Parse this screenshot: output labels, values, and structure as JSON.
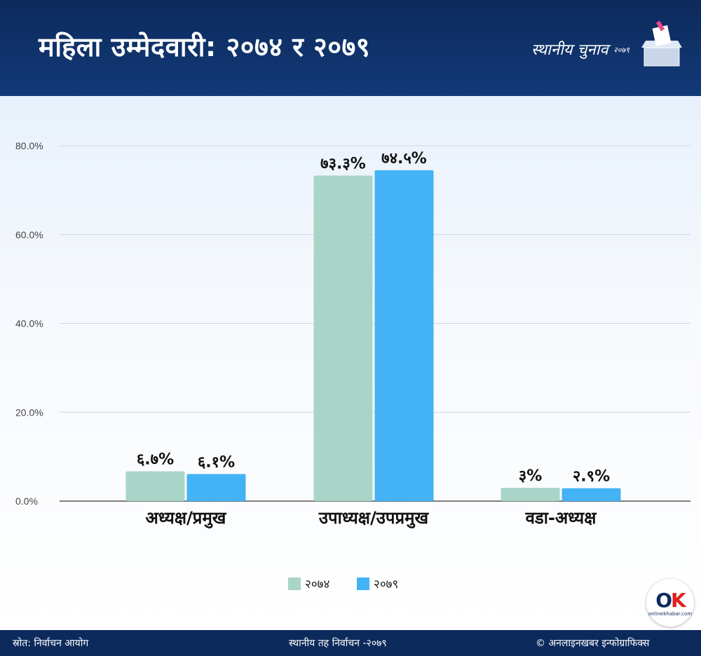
{
  "header": {
    "title": "महिला उम्मेदवारी: २०७४ र २०७९",
    "brand_text": "स्थानीय चुनाव",
    "brand_year": "२०७९"
  },
  "footer": {
    "source": "स्रोत: निर्वाचन आयोग",
    "center": "स्थानीय तह निर्वाचन -२०७९",
    "copyright": "© अनलाइनखबर इन्फोग्राफिक्स"
  },
  "logo": {
    "text_o": "O",
    "text_k": "K",
    "subtext": "onlinekhabar.com"
  },
  "colors": {
    "header_bg": "#0d2a5c",
    "series_2074": "#a8d5c8",
    "series_2079": "#43b3f5"
  },
  "chart_data": {
    "type": "bar",
    "categories": [
      "अध्यक्ष/प्रमुख",
      "उपाध्यक्ष/उपप्रमुख",
      "वडा-अध्यक्ष"
    ],
    "series": [
      {
        "name": "२०७४",
        "values": [
          6.7,
          73.3,
          3.0
        ],
        "labels": [
          "६.७%",
          "७३.३%",
          "३%"
        ],
        "color": "#a8d5c8"
      },
      {
        "name": "२०७९",
        "values": [
          6.1,
          74.5,
          2.9
        ],
        "labels": [
          "६.१%",
          "७४.५%",
          "२.९%"
        ],
        "color": "#43b3f5"
      }
    ],
    "ylim": [
      0,
      80
    ],
    "yticks": [
      "0.0%",
      "20.0%",
      "40.0%",
      "60.0%",
      "80.0%"
    ],
    "ytick_values": [
      0,
      20,
      40,
      60,
      80
    ],
    "grid": true,
    "legend_position": "bottom"
  }
}
